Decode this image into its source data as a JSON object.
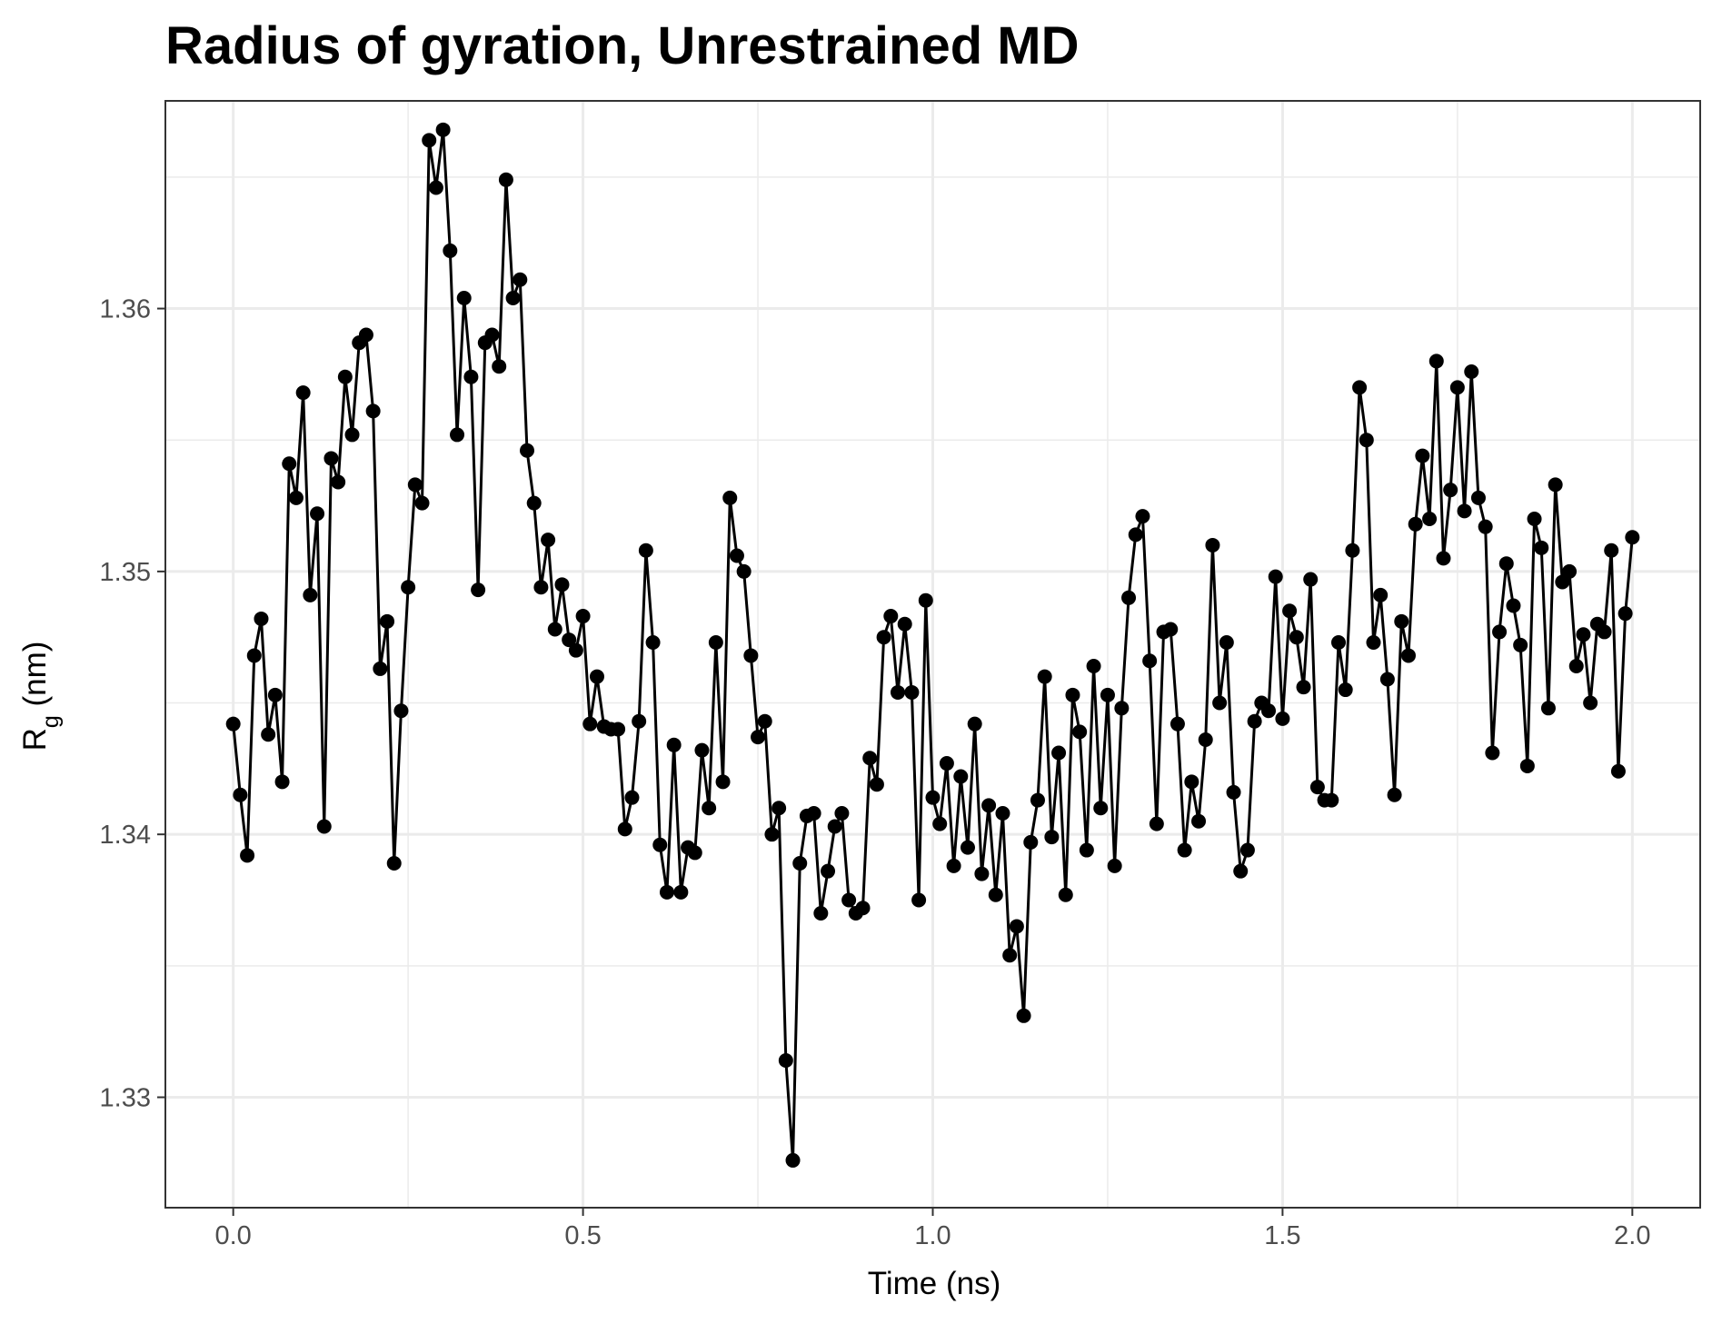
{
  "chart_data": {
    "type": "line",
    "title": "Radius of gyration, Unrestrained MD",
    "xlabel": "Time (ns)",
    "ylabel_main": "R",
    "ylabel_sub": "g",
    "ylabel_units": " (nm)",
    "xlim": [
      -0.097,
      2.097
    ],
    "ylim": [
      1.3258,
      1.3679
    ],
    "x_ticks": [
      0,
      0.5,
      1,
      1.5,
      2
    ],
    "x_tick_labels": [
      "0.0",
      "0.5",
      "1.0",
      "1.5",
      "2.0"
    ],
    "y_ticks": [
      1.33,
      1.34,
      1.35,
      1.36
    ],
    "y_tick_labels": [
      "1.33",
      "1.34",
      "1.35",
      "1.36"
    ],
    "grid": true,
    "legend": "none",
    "line_color": "#000000",
    "point_color": "#000000",
    "x_start": 0,
    "x_step": 0.01,
    "values": [
      1.3442,
      1.3415,
      1.3392,
      1.3468,
      1.3482,
      1.3438,
      1.3453,
      1.342,
      1.3541,
      1.3528,
      1.3568,
      1.3491,
      1.3522,
      1.3403,
      1.3543,
      1.3534,
      1.3574,
      1.3552,
      1.3587,
      1.359,
      1.3561,
      1.3463,
      1.3481,
      1.3389,
      1.3447,
      1.3494,
      1.3533,
      1.3526,
      1.3664,
      1.3646,
      1.3668,
      1.3622,
      1.3552,
      1.3604,
      1.3574,
      1.3493,
      1.3587,
      1.359,
      1.3578,
      1.3649,
      1.3604,
      1.3611,
      1.3546,
      1.3526,
      1.3494,
      1.3512,
      1.3478,
      1.3495,
      1.3474,
      1.347,
      1.3483,
      1.3442,
      1.346,
      1.3441,
      1.344,
      1.344,
      1.3402,
      1.3414,
      1.3443,
      1.3508,
      1.3473,
      1.3396,
      1.3378,
      1.3434,
      1.3378,
      1.3395,
      1.3393,
      1.3432,
      1.341,
      1.3473,
      1.342,
      1.3528,
      1.3506,
      1.35,
      1.3468,
      1.3437,
      1.3443,
      1.34,
      1.341,
      1.3314,
      1.3276,
      1.3389,
      1.3407,
      1.3408,
      1.337,
      1.3386,
      1.3403,
      1.3408,
      1.3375,
      1.337,
      1.3372,
      1.3429,
      1.3419,
      1.3475,
      1.3483,
      1.3454,
      1.348,
      1.3454,
      1.3375,
      1.3489,
      1.3414,
      1.3404,
      1.3427,
      1.3388,
      1.3422,
      1.3395,
      1.3442,
      1.3385,
      1.3411,
      1.3377,
      1.3408,
      1.3354,
      1.3365,
      1.3331,
      1.3397,
      1.3413,
      1.346,
      1.3399,
      1.3431,
      1.3377,
      1.3453,
      1.3439,
      1.3394,
      1.3464,
      1.341,
      1.3453,
      1.3388,
      1.3448,
      1.349,
      1.3514,
      1.3521,
      1.3466,
      1.3404,
      1.3477,
      1.3478,
      1.3442,
      1.3394,
      1.342,
      1.3405,
      1.3436,
      1.351,
      1.345,
      1.3473,
      1.3416,
      1.3386,
      1.3394,
      1.3443,
      1.345,
      1.3447,
      1.3498,
      1.3444,
      1.3485,
      1.3475,
      1.3456,
      1.3497,
      1.3418,
      1.3413,
      1.3413,
      1.3473,
      1.3455,
      1.3508,
      1.357,
      1.355,
      1.3473,
      1.3491,
      1.3459,
      1.3415,
      1.3481,
      1.3468,
      1.3518,
      1.3544,
      1.352,
      1.358,
      1.3505,
      1.3531,
      1.357,
      1.3523,
      1.3576,
      1.3528,
      1.3517,
      1.3431,
      1.3477,
      1.3503,
      1.3487,
      1.3472,
      1.3426,
      1.352,
      1.3509,
      1.3448,
      1.3533,
      1.3496,
      1.35,
      1.3464,
      1.3476,
      1.345,
      1.348,
      1.3477,
      1.3508,
      1.3424,
      1.3484,
      1.3513
    ]
  }
}
